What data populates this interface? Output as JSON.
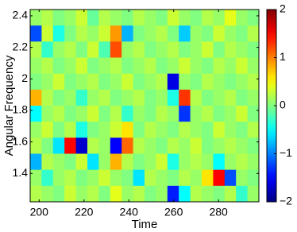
{
  "chart_data": {
    "type": "heatmap",
    "xlabel": "Time",
    "ylabel": "Angular Frequency",
    "xlim": [
      196,
      298
    ],
    "xticks": [
      200,
      220,
      240,
      260,
      280
    ],
    "ylim": [
      1.22,
      2.44
    ],
    "yticks": [
      1.4,
      1.6,
      1.8,
      2,
      2.2,
      2.4
    ],
    "clim": [
      -2,
      2
    ],
    "cticks": [
      {
        "value": -2,
        "label": "−2"
      },
      {
        "value": -1,
        "label": "−1"
      },
      0,
      1,
      2
    ],
    "colormap": "jet",
    "values": [
      [
        0.1,
        0.2,
        0,
        0.1,
        0.3,
        -0.1,
        0.2,
        0.1,
        0,
        0.2,
        0.1,
        0,
        0.3,
        0.1,
        0,
        0.2,
        0.1,
        0.4,
        0.1,
        0
      ],
      [
        -1.2,
        0.3,
        -0.4,
        0,
        0.2,
        0.1,
        0.3,
        0.9,
        -0.8,
        0,
        0.1,
        0.2,
        0,
        -0.7,
        0.1,
        0,
        0.3,
        0.1,
        0,
        0.2
      ],
      [
        0.2,
        -0.3,
        0.1,
        0.2,
        0,
        0.3,
        -0.2,
        1.2,
        0.1,
        0.2,
        0,
        0.1,
        0.2,
        0,
        0.1,
        0.3,
        0,
        0.2,
        0.1,
        0
      ],
      [
        0.1,
        0.2,
        0,
        0.1,
        0.3,
        0,
        0.1,
        0.2,
        0,
        0.1,
        0.2,
        0,
        0.1,
        0.3,
        0.1,
        0,
        0.2,
        0.1,
        0.3,
        0.1
      ],
      [
        0,
        0.1,
        0.3,
        0,
        0.1,
        0.2,
        0,
        0.1,
        0.3,
        0,
        0.1,
        0.2,
        -1.6,
        0.1,
        0,
        0.2,
        0.1,
        0,
        0.1,
        0.2
      ],
      [
        0.8,
        0.2,
        0,
        0.1,
        -0.3,
        0.1,
        0.2,
        0,
        0.1,
        0.2,
        0,
        0.1,
        -0.4,
        1.3,
        0.2,
        0,
        0.1,
        0.2,
        0,
        0.1
      ],
      [
        -0.5,
        0.1,
        0.2,
        0,
        0.1,
        0.3,
        0,
        0.2,
        -0.3,
        0.1,
        0,
        0.2,
        0.1,
        -1.3,
        0.1,
        0.2,
        0,
        0.1,
        0.3,
        0
      ],
      [
        0.1,
        0.3,
        0,
        0.2,
        -0.4,
        0,
        0.1,
        0.3,
        0.6,
        0,
        0.2,
        0.1,
        0,
        0.2,
        0.1,
        0,
        0.3,
        0.1,
        0,
        0.2
      ],
      [
        0.2,
        0,
        -0.6,
        1.5,
        -1.7,
        0.2,
        0.1,
        -1.5,
        1.1,
        0.2,
        0.1,
        0,
        0.2,
        0.1,
        0.3,
        0,
        0.1,
        0.2,
        0.1,
        0
      ],
      [
        -0.8,
        0.2,
        0.1,
        0,
        0.3,
        -0.6,
        0.1,
        0.8,
        0.2,
        0,
        0.1,
        0.3,
        -0.4,
        0.1,
        0.2,
        0.1,
        -0.5,
        0.1,
        0.2,
        0.1
      ],
      [
        0.1,
        -0.3,
        0.1,
        0.2,
        0,
        0.1,
        0.3,
        0.1,
        0,
        -0.6,
        0.2,
        0.1,
        0,
        0.2,
        0.1,
        0.6,
        1.5,
        -1.2,
        0.1,
        0
      ],
      [
        0.2,
        0.1,
        0,
        0.3,
        0.1,
        0.2,
        0,
        0.4,
        0.1,
        0.2,
        0,
        0.1,
        -1.4,
        -0.5,
        0.2,
        0.1,
        0,
        0.2,
        -0.3,
        0.1
      ]
    ]
  }
}
